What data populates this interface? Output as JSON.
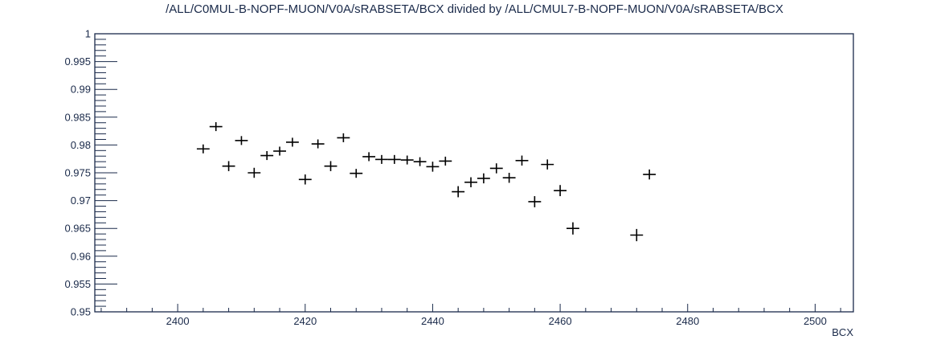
{
  "chart_data": {
    "type": "scatter",
    "title": "/ALL/C0MUL-B-NOPF-MUON/V0A/sRABSETA/BCX divided by /ALL/CMUL7-B-NOPF-MUON/V0A/sRABSETA/BCX",
    "xlabel": "BCX",
    "ylabel": "",
    "xlim": [
      2387,
      2506
    ],
    "ylim": [
      0.95,
      1.0
    ],
    "x_ticks": [
      "2400",
      "2420",
      "2440",
      "2460",
      "2480",
      "2500"
    ],
    "y_ticks": [
      "0.95",
      "0.955",
      "0.96",
      "0.965",
      "0.97",
      "0.975",
      "0.98",
      "0.985",
      "0.99",
      "0.995",
      "1"
    ],
    "grid": false,
    "error_bars": true,
    "points": [
      {
        "x": 2404,
        "y": 0.9793,
        "err": 0.0008
      },
      {
        "x": 2406,
        "y": 0.9833,
        "err": 0.0008
      },
      {
        "x": 2408,
        "y": 0.9762,
        "err": 0.0009
      },
      {
        "x": 2410,
        "y": 0.9808,
        "err": 0.0008
      },
      {
        "x": 2412,
        "y": 0.975,
        "err": 0.0009
      },
      {
        "x": 2414,
        "y": 0.9781,
        "err": 0.0008
      },
      {
        "x": 2416,
        "y": 0.9789,
        "err": 0.0008
      },
      {
        "x": 2418,
        "y": 0.9805,
        "err": 0.0008
      },
      {
        "x": 2420,
        "y": 0.9738,
        "err": 0.0009
      },
      {
        "x": 2422,
        "y": 0.9802,
        "err": 0.0008
      },
      {
        "x": 2424,
        "y": 0.9762,
        "err": 0.0009
      },
      {
        "x": 2426,
        "y": 0.9813,
        "err": 0.0008
      },
      {
        "x": 2428,
        "y": 0.9749,
        "err": 0.0008
      },
      {
        "x": 2430,
        "y": 0.9779,
        "err": 0.0008
      },
      {
        "x": 2432,
        "y": 0.9774,
        "err": 0.0008
      },
      {
        "x": 2434,
        "y": 0.9774,
        "err": 0.0008
      },
      {
        "x": 2436,
        "y": 0.9773,
        "err": 0.0008
      },
      {
        "x": 2438,
        "y": 0.977,
        "err": 0.0008
      },
      {
        "x": 2440,
        "y": 0.9761,
        "err": 0.0009
      },
      {
        "x": 2442,
        "y": 0.9771,
        "err": 0.0008
      },
      {
        "x": 2444,
        "y": 0.9716,
        "err": 0.001
      },
      {
        "x": 2446,
        "y": 0.9733,
        "err": 0.0009
      },
      {
        "x": 2448,
        "y": 0.974,
        "err": 0.0009
      },
      {
        "x": 2450,
        "y": 0.9758,
        "err": 0.0009
      },
      {
        "x": 2452,
        "y": 0.9741,
        "err": 0.0009
      },
      {
        "x": 2454,
        "y": 0.9772,
        "err": 0.0009
      },
      {
        "x": 2456,
        "y": 0.9698,
        "err": 0.001
      },
      {
        "x": 2458,
        "y": 0.9765,
        "err": 0.0009
      },
      {
        "x": 2460,
        "y": 0.9718,
        "err": 0.001
      },
      {
        "x": 2462,
        "y": 0.965,
        "err": 0.0011
      },
      {
        "x": 2472,
        "y": 0.9638,
        "err": 0.0011
      },
      {
        "x": 2474,
        "y": 0.9747,
        "err": 0.0009
      }
    ]
  }
}
